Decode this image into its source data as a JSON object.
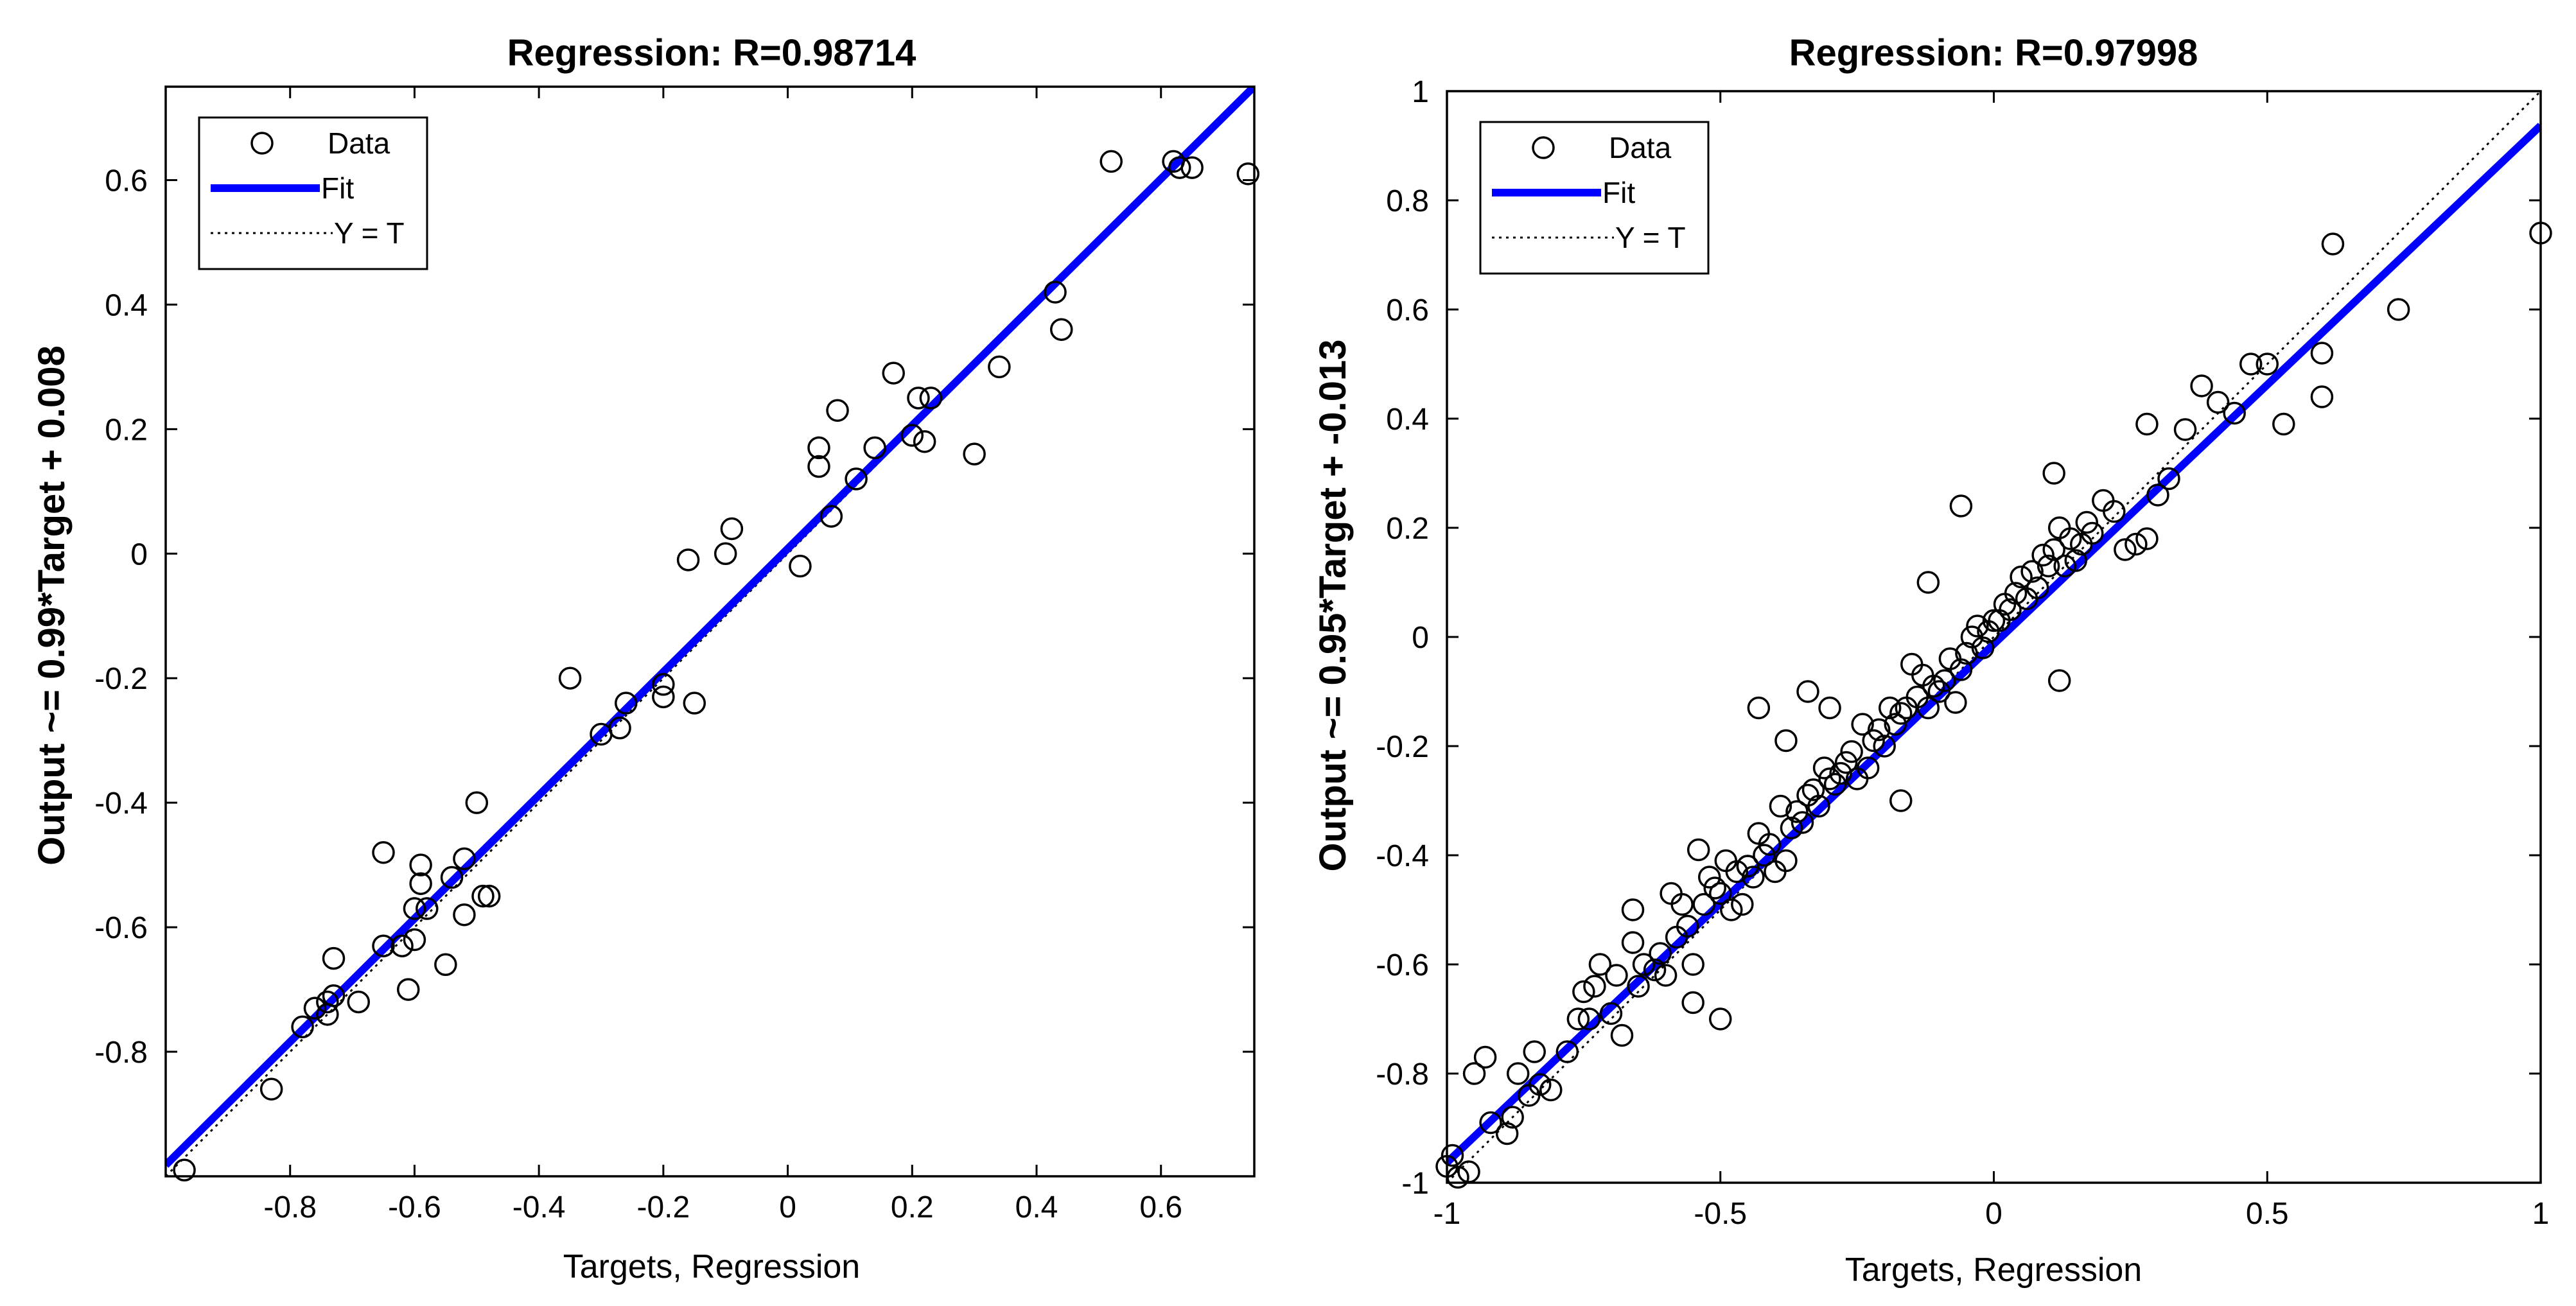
{
  "figure": {
    "background": "#ffffff"
  },
  "chart_data": [
    {
      "type": "scatter",
      "title": "Regression: R=0.98714",
      "xlabel": "Targets, Regression",
      "ylabel": "Output ~= 0.99*Target + 0.008",
      "xlim": [
        -1.0,
        0.75
      ],
      "ylim": [
        -1.0,
        0.75
      ],
      "xticks": [
        -0.8,
        -0.6,
        -0.4,
        -0.2,
        0,
        0.2,
        0.4,
        0.6
      ],
      "xtick_labels": [
        "-0.8",
        "-0.6",
        "-0.4",
        "-0.2",
        "0",
        "0.2",
        "0.4",
        "0.6"
      ],
      "yticks": [
        -0.8,
        -0.6,
        -0.4,
        -0.2,
        0,
        0.2,
        0.4,
        0.6
      ],
      "ytick_labels": [
        "-0.8",
        "-0.6",
        "-0.4",
        "-0.2",
        "0",
        "0.2",
        "0.4",
        "0.6"
      ],
      "fit": {
        "slope": 0.99,
        "intercept": 0.008,
        "color": "#0000ff"
      },
      "identity_line": {
        "color": "#000000"
      },
      "legend": {
        "position": "top-left",
        "items": [
          {
            "label": "Data",
            "kind": "marker"
          },
          {
            "label": "Fit",
            "kind": "fit"
          },
          {
            "label": "Y = T",
            "kind": "identity"
          }
        ]
      },
      "series": [
        {
          "name": "Data",
          "x": [
            -0.97,
            -0.83,
            -0.78,
            -0.76,
            -0.74,
            -0.73,
            -0.74,
            -0.73,
            -0.69,
            -0.65,
            -0.65,
            -0.62,
            -0.61,
            -0.6,
            -0.6,
            -0.59,
            -0.59,
            -0.58,
            -0.55,
            -0.54,
            -0.52,
            -0.52,
            -0.5,
            -0.49,
            -0.48,
            -0.35,
            -0.3,
            -0.27,
            -0.26,
            -0.2,
            -0.2,
            -0.16,
            -0.15,
            -0.1,
            -0.09,
            0.02,
            0.05,
            0.05,
            0.07,
            0.08,
            0.11,
            0.14,
            0.17,
            0.2,
            0.21,
            0.22,
            0.23,
            0.3,
            0.34,
            0.43,
            0.44,
            0.52,
            0.62,
            0.63,
            0.65,
            0.74
          ],
          "y": [
            -0.99,
            -0.86,
            -0.76,
            -0.73,
            -0.72,
            -0.71,
            -0.74,
            -0.65,
            -0.72,
            -0.63,
            -0.48,
            -0.63,
            -0.7,
            -0.62,
            -0.57,
            -0.53,
            -0.5,
            -0.57,
            -0.66,
            -0.52,
            -0.49,
            -0.58,
            -0.4,
            -0.55,
            -0.55,
            -0.2,
            -0.29,
            -0.28,
            -0.24,
            -0.23,
            -0.21,
            -0.01,
            -0.24,
            0.0,
            0.04,
            -0.02,
            0.14,
            0.17,
            0.06,
            0.23,
            0.12,
            0.17,
            0.29,
            0.19,
            0.25,
            0.18,
            0.25,
            0.16,
            0.3,
            0.42,
            0.36,
            0.63,
            0.63,
            0.62,
            0.62,
            0.61
          ]
        }
      ]
    },
    {
      "type": "scatter",
      "title": "Regression: R=0.97998",
      "xlabel": "Targets, Regression",
      "ylabel": "Output ~= 0.95*Target + -0.013",
      "xlim": [
        -1,
        1
      ],
      "ylim": [
        -1,
        1
      ],
      "xticks": [
        -1,
        -0.5,
        0,
        0.5,
        1
      ],
      "xtick_labels": [
        "-1",
        "-0.5",
        "0",
        "0.5",
        "1"
      ],
      "yticks": [
        -1,
        -0.8,
        -0.6,
        -0.4,
        -0.2,
        0,
        0.2,
        0.4,
        0.6,
        0.8,
        1
      ],
      "ytick_labels": [
        "-1",
        "-0.8",
        "-0.6",
        "-0.4",
        "-0.2",
        "0",
        "0.2",
        "0.4",
        "0.6",
        "0.8",
        "1"
      ],
      "fit": {
        "slope": 0.95,
        "intercept": -0.013,
        "color": "#0000ff"
      },
      "identity_line": {
        "color": "#000000"
      },
      "legend": {
        "position": "top-left",
        "items": [
          {
            "label": "Data",
            "kind": "marker"
          },
          {
            "label": "Fit",
            "kind": "fit"
          },
          {
            "label": "Y = T",
            "kind": "identity"
          }
        ]
      },
      "series": [
        {
          "name": "Data",
          "x": [
            -1.0,
            -0.99,
            -0.98,
            -0.95,
            -0.93,
            -0.89,
            -0.87,
            -0.85,
            -0.84,
            -0.83,
            -0.81,
            -0.78,
            -0.76,
            -0.75,
            -0.74,
            -0.73,
            -0.72,
            -0.7,
            -0.69,
            -0.68,
            -0.66,
            -0.65,
            -0.64,
            -0.62,
            -0.61,
            -0.6,
            -0.59,
            -0.58,
            -0.57,
            -0.56,
            -0.55,
            -0.54,
            -0.53,
            -0.52,
            -0.51,
            -0.5,
            -0.49,
            -0.48,
            -0.47,
            -0.46,
            -0.45,
            -0.44,
            -0.43,
            -0.42,
            -0.41,
            -0.4,
            -0.39,
            -0.38,
            -0.37,
            -0.36,
            -0.35,
            -0.34,
            -0.33,
            -0.32,
            -0.31,
            -0.3,
            -0.29,
            -0.28,
            -0.27,
            -0.26,
            -0.25,
            -0.24,
            -0.23,
            -0.22,
            -0.21,
            -0.2,
            -0.19,
            -0.18,
            -0.17,
            -0.16,
            -0.15,
            -0.14,
            -0.13,
            -0.12,
            -0.11,
            -0.1,
            -0.09,
            -0.08,
            -0.07,
            -0.06,
            -0.05,
            -0.04,
            -0.03,
            -0.02,
            -0.01,
            0.0,
            0.01,
            0.02,
            0.03,
            0.04,
            0.05,
            0.06,
            0.07,
            0.08,
            0.09,
            0.1,
            0.11,
            0.12,
            0.13,
            0.14,
            0.15,
            0.16,
            0.17,
            0.18,
            0.2,
            0.22,
            0.24,
            0.26,
            0.28,
            0.3,
            0.32,
            0.35,
            0.38,
            0.41,
            0.44,
            0.47,
            0.5,
            0.53,
            0.6,
            0.62,
            0.74,
            1.0,
            -0.96,
            -0.92,
            -0.88,
            -0.66,
            -0.5,
            -0.43,
            -0.38,
            -0.3,
            -0.12,
            -0.06,
            0.11,
            0.12,
            0.28,
            0.6,
            -0.45,
            -0.55,
            -0.34,
            -0.17
          ],
          "y": [
            -0.97,
            -0.95,
            -0.99,
            -0.8,
            -0.77,
            -0.91,
            -0.8,
            -0.84,
            -0.76,
            -0.82,
            -0.83,
            -0.76,
            -0.7,
            -0.65,
            -0.7,
            -0.64,
            -0.6,
            -0.69,
            -0.62,
            -0.73,
            -0.56,
            -0.64,
            -0.6,
            -0.61,
            -0.58,
            -0.62,
            -0.47,
            -0.55,
            -0.49,
            -0.53,
            -0.67,
            -0.39,
            -0.49,
            -0.44,
            -0.46,
            -0.47,
            -0.41,
            -0.5,
            -0.43,
            -0.49,
            -0.42,
            -0.44,
            -0.36,
            -0.4,
            -0.38,
            -0.43,
            -0.31,
            -0.41,
            -0.35,
            -0.32,
            -0.34,
            -0.29,
            -0.28,
            -0.31,
            -0.24,
            -0.26,
            -0.27,
            -0.25,
            -0.23,
            -0.21,
            -0.26,
            -0.16,
            -0.24,
            -0.19,
            -0.17,
            -0.2,
            -0.13,
            -0.16,
            -0.14,
            -0.13,
            -0.05,
            -0.11,
            -0.07,
            -0.13,
            -0.09,
            -0.1,
            -0.08,
            -0.04,
            -0.12,
            -0.06,
            -0.03,
            0.0,
            0.02,
            -0.02,
            0.01,
            0.03,
            0.03,
            0.06,
            0.05,
            0.08,
            0.11,
            0.07,
            0.12,
            0.09,
            0.15,
            0.13,
            0.16,
            0.2,
            0.13,
            0.18,
            0.14,
            0.17,
            0.21,
            0.19,
            0.25,
            0.23,
            0.16,
            0.17,
            0.18,
            0.26,
            0.29,
            0.38,
            0.46,
            0.43,
            0.41,
            0.5,
            0.5,
            0.39,
            0.52,
            0.72,
            0.6,
            0.74,
            -0.98,
            -0.89,
            -0.88,
            -0.5,
            -0.7,
            -0.13,
            -0.19,
            -0.13,
            0.1,
            0.24,
            0.3,
            -0.08,
            0.39,
            0.44,
            -0.42,
            -0.6,
            -0.1,
            -0.3
          ]
        }
      ]
    }
  ]
}
